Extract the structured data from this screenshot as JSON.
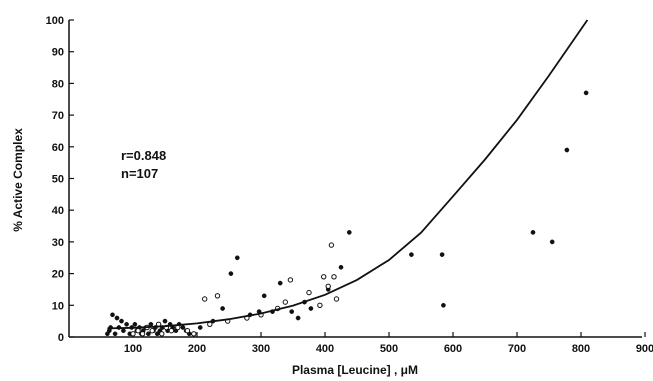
{
  "chart_data": {
    "type": "scatter",
    "title": "",
    "xlabel": "Plasma [Leucine] , μM",
    "ylabel": "% Active Complex",
    "xlim": [
      0,
      900
    ],
    "ylim": [
      0,
      100
    ],
    "x_ticks": [
      100,
      200,
      300,
      400,
      500,
      600,
      700,
      800,
      900
    ],
    "y_ticks": [
      0,
      10,
      20,
      30,
      40,
      50,
      60,
      70,
      80,
      90,
      100
    ],
    "annotations": [
      "r=0.848",
      "n=107"
    ],
    "grid": false,
    "legend": "none",
    "series": [
      {
        "marker": "filled-circle",
        "points": [
          [
            60,
            1
          ],
          [
            63,
            2
          ],
          [
            65,
            3
          ],
          [
            68,
            7
          ],
          [
            72,
            1
          ],
          [
            75,
            6
          ],
          [
            78,
            3
          ],
          [
            82,
            5
          ],
          [
            85,
            2
          ],
          [
            90,
            4
          ],
          [
            95,
            1
          ],
          [
            98,
            3
          ],
          [
            103,
            4
          ],
          [
            106,
            2
          ],
          [
            110,
            3
          ],
          [
            113,
            1
          ],
          [
            116,
            2
          ],
          [
            120,
            3
          ],
          [
            124,
            1
          ],
          [
            128,
            4
          ],
          [
            132,
            2
          ],
          [
            135,
            3
          ],
          [
            138,
            1
          ],
          [
            142,
            2
          ],
          [
            146,
            3
          ],
          [
            150,
            5
          ],
          [
            154,
            2
          ],
          [
            158,
            4
          ],
          [
            162,
            3
          ],
          [
            167,
            2
          ],
          [
            172,
            4
          ],
          [
            178,
            3
          ],
          [
            183,
            2
          ],
          [
            188,
            1
          ],
          [
            205,
            3
          ],
          [
            225,
            5
          ],
          [
            240,
            9
          ],
          [
            253,
            20
          ],
          [
            263,
            25
          ],
          [
            283,
            7
          ],
          [
            297,
            8
          ],
          [
            305,
            13
          ],
          [
            318,
            8
          ],
          [
            330,
            17
          ],
          [
            348,
            8
          ],
          [
            358,
            6
          ],
          [
            368,
            11
          ],
          [
            378,
            9
          ],
          [
            405,
            15
          ],
          [
            425,
            22
          ],
          [
            438,
            33
          ],
          [
            535,
            26
          ],
          [
            583,
            26
          ],
          [
            585,
            10
          ],
          [
            725,
            33
          ],
          [
            755,
            30
          ],
          [
            778,
            59
          ],
          [
            808,
            77
          ]
        ]
      },
      {
        "marker": "open-circle",
        "points": [
          [
            100,
            1
          ],
          [
            108,
            2
          ],
          [
            115,
            1
          ],
          [
            122,
            3
          ],
          [
            130,
            2
          ],
          [
            140,
            4
          ],
          [
            145,
            1
          ],
          [
            152,
            3
          ],
          [
            160,
            2
          ],
          [
            170,
            3
          ],
          [
            185,
            2
          ],
          [
            195,
            1
          ],
          [
            212,
            12
          ],
          [
            220,
            4
          ],
          [
            232,
            13
          ],
          [
            248,
            5
          ],
          [
            278,
            6
          ],
          [
            300,
            7
          ],
          [
            326,
            9
          ],
          [
            338,
            11
          ],
          [
            346,
            18
          ],
          [
            375,
            14
          ],
          [
            392,
            10
          ],
          [
            398,
            19
          ],
          [
            405,
            16
          ],
          [
            410,
            29
          ],
          [
            414,
            19
          ],
          [
            418,
            12
          ]
        ]
      },
      {
        "marker": "fit-curve",
        "points": [
          [
            60,
            2.7
          ],
          [
            100,
            2.9
          ],
          [
            150,
            3.4
          ],
          [
            200,
            4.3
          ],
          [
            250,
            5.6
          ],
          [
            300,
            7.4
          ],
          [
            350,
            9.9
          ],
          [
            400,
            13.3
          ],
          [
            450,
            18.0
          ],
          [
            500,
            24.3
          ],
          [
            550,
            32.9
          ],
          [
            600,
            44.4
          ],
          [
            650,
            56.0
          ],
          [
            700,
            68.5
          ],
          [
            750,
            82.5
          ],
          [
            810,
            100
          ]
        ]
      }
    ]
  }
}
